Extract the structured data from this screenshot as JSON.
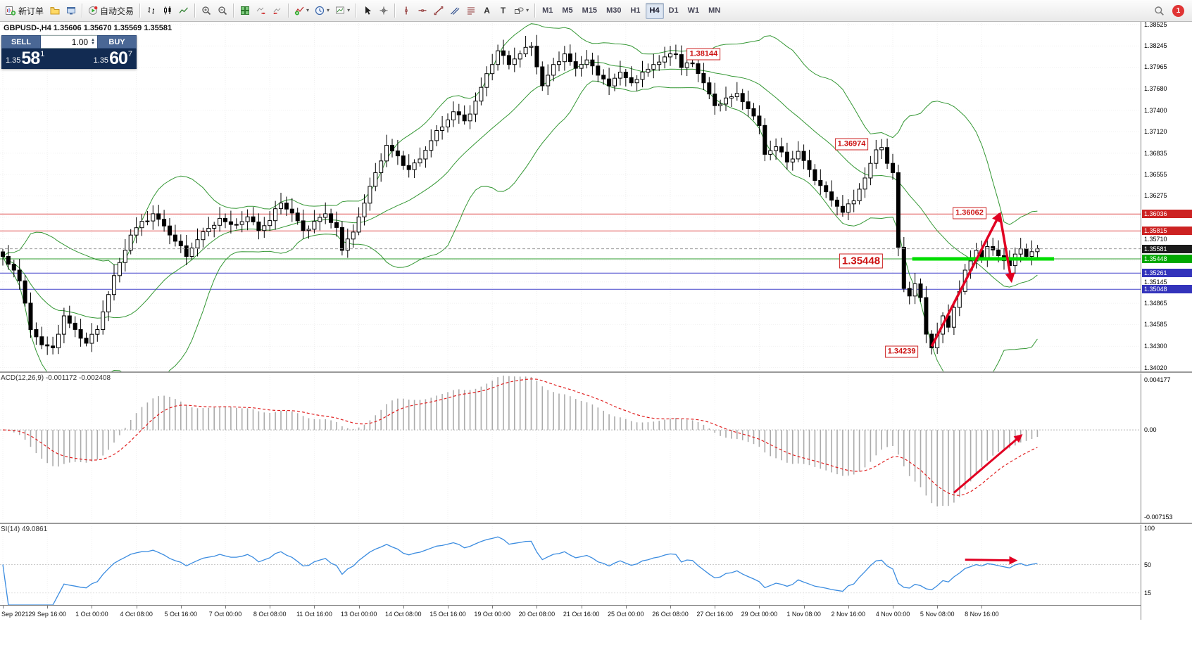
{
  "toolbar": {
    "new_order_label": "新订单",
    "auto_trading_label": "自动交易",
    "glyphs": {
      "text_tool": "A",
      "label_tool": "T"
    },
    "timeframes": [
      "M1",
      "M5",
      "M15",
      "M30",
      "H1",
      "H4",
      "D1",
      "W1",
      "MN"
    ],
    "active_timeframe": "H4",
    "notification_count": "1"
  },
  "chart": {
    "title": "GBPUSD-,H4 1.35606 1.35670 1.35569 1.35581",
    "trade_panel": {
      "sell_label": "SELL",
      "buy_label": "BUY",
      "volume": "1.00",
      "sell_price": {
        "base": "1.35",
        "pips": "58",
        "point": "1"
      },
      "buy_price": {
        "base": "1.35",
        "pips": "60",
        "point": "7"
      }
    },
    "callouts": [
      {
        "text": "1.38144",
        "i": 126,
        "price": 1.38137,
        "big": false
      },
      {
        "text": "1.36974",
        "i": 152.6,
        "price": 1.36956,
        "big": false
      },
      {
        "text": "1.36062",
        "i": 173.8,
        "price": 1.36051,
        "big": false
      },
      {
        "text": "1.35448",
        "i": 154.3,
        "price": 1.35424,
        "big": true
      },
      {
        "text": "1.34239",
        "i": 161.6,
        "price": 1.34233,
        "big": false
      }
    ],
    "hlines": [
      {
        "price": 1.36036,
        "color": "#e05555",
        "label": "1.36036",
        "label_bg": "#cc2222"
      },
      {
        "price": 1.35815,
        "color": "#e05555",
        "label": "1.35815",
        "label_bg": "#cc2222"
      },
      {
        "price": 1.35448,
        "color": "#2f9e2f",
        "label": "1.35448",
        "label_bg": "#00a800"
      },
      {
        "price": 1.35261,
        "color": "#4646cc",
        "label": "1.35261",
        "label_bg": "#3333bb"
      },
      {
        "price": 1.35048,
        "color": "#4646cc",
        "label": "1.35048",
        "label_bg": "#3333bb"
      }
    ],
    "green_segment": {
      "price": 1.35448,
      "i1": 163.5,
      "i2": 189,
      "color": "#00dd00"
    },
    "current_price": {
      "value": 1.35581,
      "label": "1.35581",
      "label_bg": "#1a1a1a"
    },
    "arrows": [
      {
        "i1": 167,
        "p1": 1.343,
        "i2": 179.2,
        "p2": 1.3603
      },
      {
        "i1": 179.2,
        "p1": 1.3605,
        "i2": 181.3,
        "p2": 1.3517
      }
    ]
  },
  "macd": {
    "label": "ACD(12,26,9) -0.001172 -0.002408",
    "axis_top": "0.004177",
    "axis_zero": "0.00",
    "axis_bottom": "-0.007153",
    "arrow": {
      "x1i": 171,
      "y1f": 0.8,
      "x2i": 183,
      "y2f": 0.42
    }
  },
  "rsi": {
    "label": "SI(14) 49.0861",
    "axis_labels": [
      "100",
      "50",
      "15"
    ],
    "levels": [
      100,
      50,
      15
    ],
    "arrow": {
      "x1i": 173,
      "y1f": 0.44,
      "x2i": 182,
      "y2f": 0.45
    }
  },
  "time_axis": [
    "Sep 2021",
    "29 Sep 16:00",
    "1 Oct 00:00",
    "4 Oct 08:00",
    "5 Oct 16:00",
    "7 Oct 00:00",
    "8 Oct 08:00",
    "11 Oct 16:00",
    "13 Oct 00:00",
    "14 Oct 08:00",
    "15 Oct 16:00",
    "19 Oct 00:00",
    "20 Oct 08:00",
    "21 Oct 16:00",
    "25 Oct 00:00",
    "26 Oct 08:00",
    "27 Oct 16:00",
    "29 Oct 00:00",
    "1 Nov 08:00",
    "2 Nov 16:00",
    "4 Nov 00:00",
    "5 Nov 08:00",
    "8 Nov 16:00"
  ],
  "chart_data": {
    "type": "candlestick",
    "symbol": "GBPUSD-",
    "timeframe": "H4",
    "ohlc_header": {
      "open": 1.35606,
      "high": 1.3567,
      "low": 1.35569,
      "close": 1.35581
    },
    "candle_count": 187,
    "candles_per_label": 8,
    "price_axis": {
      "min": 1.3397,
      "max": 1.3857,
      "ticks": [
        1.38525,
        1.38245,
        1.37965,
        1.3768,
        1.374,
        1.3712,
        1.36835,
        1.36555,
        1.36275,
        1.35995,
        1.3571,
        1.3543,
        1.35145,
        1.34865,
        1.34585,
        1.343,
        1.3402
      ]
    },
    "close_anchors": [
      [
        0,
        1.3548
      ],
      [
        2,
        1.353
      ],
      [
        3,
        1.3516
      ],
      [
        5,
        1.3452
      ],
      [
        7,
        1.3432
      ],
      [
        9,
        1.3428
      ],
      [
        11,
        1.347
      ],
      [
        13,
        1.3452
      ],
      [
        15,
        1.3434
      ],
      [
        17,
        1.3452
      ],
      [
        19,
        1.3498
      ],
      [
        21,
        1.354
      ],
      [
        23,
        1.3576
      ],
      [
        25,
        1.3594
      ],
      [
        27,
        1.3604
      ],
      [
        29,
        1.3588
      ],
      [
        31,
        1.3568
      ],
      [
        33,
        1.3548
      ],
      [
        35,
        1.357
      ],
      [
        37,
        1.3585
      ],
      [
        39,
        1.3598
      ],
      [
        41,
        1.359
      ],
      [
        44,
        1.36
      ],
      [
        46,
        1.3582
      ],
      [
        48,
        1.3595
      ],
      [
        50,
        1.3618
      ],
      [
        52,
        1.3605
      ],
      [
        54,
        1.3582
      ],
      [
        56,
        1.3594
      ],
      [
        58,
        1.3604
      ],
      [
        60,
        1.3586
      ],
      [
        61,
        1.3556
      ],
      [
        63,
        1.358
      ],
      [
        65,
        1.3618
      ],
      [
        67,
        1.3658
      ],
      [
        69,
        1.3694
      ],
      [
        71,
        1.368
      ],
      [
        73,
        1.3662
      ],
      [
        75,
        1.3676
      ],
      [
        77,
        1.37
      ],
      [
        79,
        1.3718
      ],
      [
        81,
        1.3738
      ],
      [
        83,
        1.3726
      ],
      [
        85,
        1.3752
      ],
      [
        87,
        1.3788
      ],
      [
        89,
        1.3818
      ],
      [
        91,
        1.38
      ],
      [
        93,
        1.3814
      ],
      [
        95,
        1.3824
      ],
      [
        97,
        1.3772
      ],
      [
        99,
        1.38
      ],
      [
        101,
        1.3814
      ],
      [
        103,
        1.3795
      ],
      [
        105,
        1.3806
      ],
      [
        107,
        1.3786
      ],
      [
        109,
        1.3772
      ],
      [
        111,
        1.379
      ],
      [
        113,
        1.3776
      ],
      [
        115,
        1.379
      ],
      [
        117,
        1.38
      ],
      [
        119,
        1.381
      ],
      [
        121,
        1.3813
      ],
      [
        122,
        1.3796
      ],
      [
        124,
        1.3801
      ],
      [
        126,
        1.3776
      ],
      [
        128,
        1.3746
      ],
      [
        130,
        1.3756
      ],
      [
        132,
        1.3762
      ],
      [
        134,
        1.3742
      ],
      [
        136,
        1.372
      ],
      [
        137,
        1.3682
      ],
      [
        139,
        1.3692
      ],
      [
        141,
        1.3672
      ],
      [
        143,
        1.3686
      ],
      [
        145,
        1.3662
      ],
      [
        147,
        1.3641
      ],
      [
        149,
        1.3622
      ],
      [
        151,
        1.3606
      ],
      [
        153,
        1.3621
      ],
      [
        155,
        1.3651
      ],
      [
        157,
        1.3688
      ],
      [
        158,
        1.3691
      ],
      [
        160,
        1.3658
      ],
      [
        161,
        1.356
      ],
      [
        162,
        1.3506
      ],
      [
        163,
        1.3496
      ],
      [
        164,
        1.3512
      ],
      [
        165,
        1.3494
      ],
      [
        166,
        1.3446
      ],
      [
        167,
        1.3428
      ],
      [
        168,
        1.3446
      ],
      [
        169,
        1.347
      ],
      [
        170,
        1.3455
      ],
      [
        171,
        1.3481
      ],
      [
        172,
        1.3502
      ],
      [
        173,
        1.353
      ],
      [
        175,
        1.3556
      ],
      [
        176,
        1.3546
      ],
      [
        177,
        1.3561
      ],
      [
        179,
        1.3549
      ],
      [
        181,
        1.3536
      ],
      [
        183,
        1.3558
      ],
      [
        184,
        1.3548
      ],
      [
        186,
        1.35581
      ]
    ],
    "indicators": {
      "bollinger": {
        "period": 20,
        "deviation": 2,
        "color": "#1e8c1e"
      },
      "macd": {
        "fast": 12,
        "slow": 26,
        "signal": 9,
        "value": -0.001172,
        "signal_value": -0.002408
      },
      "rsi": {
        "period": 14,
        "value": 49.0861
      }
    }
  }
}
